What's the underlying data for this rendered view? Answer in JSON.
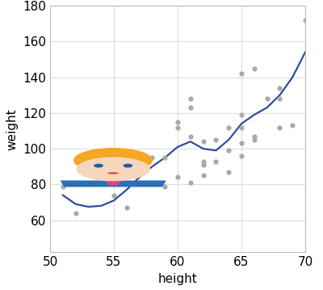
{
  "chart_data": {
    "type": "scatter",
    "x_label": "height",
    "y_label": "weight",
    "xlim": [
      50,
      70
    ],
    "xticks": [
      50,
      55,
      60,
      65,
      70
    ],
    "ylim": [
      42,
      180
    ],
    "yticks": [
      60,
      80,
      100,
      120,
      140,
      160,
      180
    ],
    "grid": true,
    "series": [
      {
        "type": "scatter",
        "color": "#a9a9a9",
        "marker": "circle",
        "x": [
          51,
          52,
          55,
          56,
          58,
          59,
          59,
          60,
          60,
          60,
          61,
          61,
          61,
          61,
          62,
          62,
          62,
          62,
          63,
          63,
          64,
          64,
          64,
          65,
          65,
          65,
          65,
          65,
          66,
          66,
          66,
          67,
          68,
          68,
          68,
          69,
          70
        ],
        "values": [
          79,
          64,
          74,
          67,
          95,
          79,
          95,
          84,
          112,
          115,
          81,
          107,
          123,
          128,
          85,
          91,
          93,
          104,
          93,
          105,
          87,
          99,
          112,
          96,
          103,
          112,
          119,
          142,
          105,
          107,
          145,
          128,
          112,
          128,
          134,
          113,
          172
        ]
      },
      {
        "type": "line",
        "color": "#2e4f9a",
        "line_style": "solid",
        "x": [
          51,
          52,
          53,
          54,
          55,
          56,
          57,
          58,
          59,
          60,
          61,
          62,
          63,
          64,
          65,
          66,
          67,
          68,
          69,
          70
        ],
        "values": [
          74,
          69,
          67.5,
          68,
          71,
          77,
          84,
          90,
          95,
          101,
          104,
          100,
          99,
          105,
          114,
          119,
          123,
          130,
          140,
          154
        ]
      }
    ]
  }
}
